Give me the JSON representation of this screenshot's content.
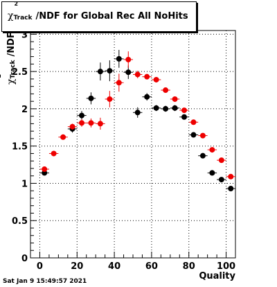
{
  "title": {
    "chi": "χ",
    "sup": "2",
    "sub": "Track",
    "rest": "/NDF for Global Rec All NoHits"
  },
  "timestamp": "Sat Jan  9 15:49:57 2021",
  "chart_data": {
    "type": "scatter",
    "title": "χ²_Track/NDF for Global Rec All NoHits",
    "xlabel": "Quality",
    "ylabel": "χ²_Track/NDF",
    "xlim": [
      -5,
      105
    ],
    "ylim": [
      0,
      3.05
    ],
    "xticks": [
      0,
      20,
      40,
      60,
      80,
      100
    ],
    "xtick_labels": [
      "0",
      "20",
      "40",
      "60",
      "80",
      "100"
    ],
    "yticks": [
      0,
      0.5,
      1,
      1.5,
      2,
      2.5,
      3
    ],
    "ytick_labels": [
      "0",
      "0.5",
      "1",
      "1.5",
      "2",
      "2.5",
      "3"
    ],
    "grid": true,
    "x_error": 2.5,
    "series": [
      {
        "color": "#000000",
        "points": [
          {
            "x": 2.5,
            "y": 1.14,
            "err": 0.03
          },
          {
            "x": 17.5,
            "y": 1.73,
            "err": 0.05
          },
          {
            "x": 22.5,
            "y": 1.91,
            "err": 0.06
          },
          {
            "x": 27.5,
            "y": 2.14,
            "err": 0.08
          },
          {
            "x": 32.5,
            "y": 2.5,
            "err": 0.12
          },
          {
            "x": 37.5,
            "y": 2.51,
            "err": 0.14
          },
          {
            "x": 42.5,
            "y": 2.67,
            "err": 0.12
          },
          {
            "x": 47.5,
            "y": 2.49,
            "err": 0.09
          },
          {
            "x": 52.5,
            "y": 1.95,
            "err": 0.07
          },
          {
            "x": 57.5,
            "y": 2.16,
            "err": 0.05
          },
          {
            "x": 62.5,
            "y": 2.01,
            "err": 0.04
          },
          {
            "x": 67.5,
            "y": 2.0,
            "err": 0.04
          },
          {
            "x": 72.5,
            "y": 2.01,
            "err": 0.04
          },
          {
            "x": 77.5,
            "y": 1.89,
            "err": 0.03
          },
          {
            "x": 82.5,
            "y": 1.65,
            "err": 0.02
          },
          {
            "x": 87.5,
            "y": 1.37,
            "err": 0.02
          },
          {
            "x": 92.5,
            "y": 1.14,
            "err": 0.02
          },
          {
            "x": 97.5,
            "y": 1.05,
            "err": 0.02
          },
          {
            "x": 102.5,
            "y": 0.93,
            "err": 0.02
          }
        ]
      },
      {
        "color": "#ee0000",
        "points": [
          {
            "x": 2.5,
            "y": 1.19,
            "err": 0.03
          },
          {
            "x": 7.5,
            "y": 1.4,
            "err": 0.03
          },
          {
            "x": 12.5,
            "y": 1.62,
            "err": 0.03
          },
          {
            "x": 17.5,
            "y": 1.76,
            "err": 0.04
          },
          {
            "x": 22.5,
            "y": 1.81,
            "err": 0.05
          },
          {
            "x": 27.5,
            "y": 1.81,
            "err": 0.06
          },
          {
            "x": 32.5,
            "y": 1.8,
            "err": 0.08
          },
          {
            "x": 37.5,
            "y": 2.13,
            "err": 0.11
          },
          {
            "x": 42.5,
            "y": 2.35,
            "err": 0.12
          },
          {
            "x": 47.5,
            "y": 2.66,
            "err": 0.11
          },
          {
            "x": 52.5,
            "y": 2.46,
            "err": 0.05
          },
          {
            "x": 57.5,
            "y": 2.43,
            "err": 0.03
          },
          {
            "x": 62.5,
            "y": 2.39,
            "err": 0.03
          },
          {
            "x": 67.5,
            "y": 2.25,
            "err": 0.03
          },
          {
            "x": 72.5,
            "y": 2.13,
            "err": 0.03
          },
          {
            "x": 77.5,
            "y": 1.98,
            "err": 0.02
          },
          {
            "x": 82.5,
            "y": 1.82,
            "err": 0.02
          },
          {
            "x": 87.5,
            "y": 1.64,
            "err": 0.02
          },
          {
            "x": 92.5,
            "y": 1.45,
            "err": 0.02
          },
          {
            "x": 97.5,
            "y": 1.31,
            "err": 0.02
          },
          {
            "x": 102.5,
            "y": 1.09,
            "err": 0.02
          }
        ]
      }
    ]
  }
}
